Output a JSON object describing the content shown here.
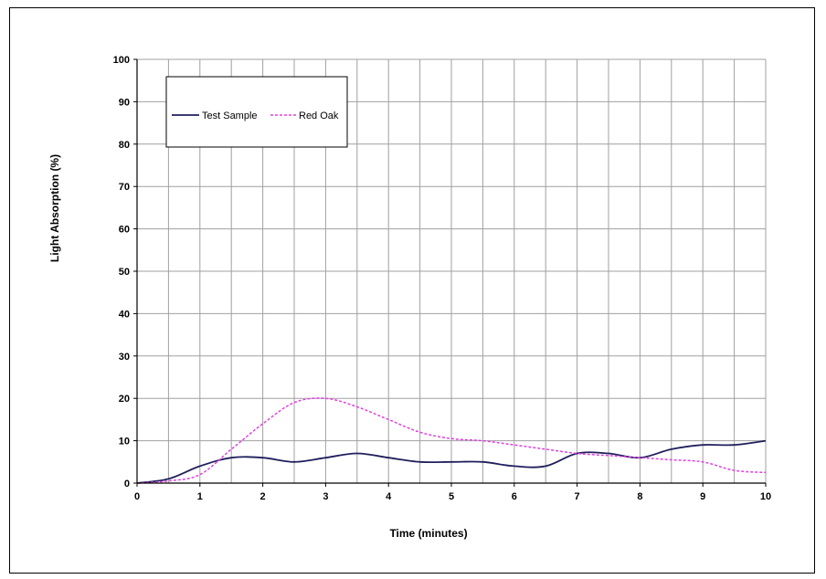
{
  "chart_data": {
    "type": "line",
    "xlabel": "Time (minutes)",
    "ylabel": "Light Absorption (%)",
    "xlim": [
      0,
      10
    ],
    "ylim": [
      0,
      100
    ],
    "x_ticks": [
      "0",
      "1",
      "2",
      "3",
      "4",
      "5",
      "6",
      "7",
      "8",
      "9",
      "10"
    ],
    "y_ticks": [
      "0",
      "10",
      "20",
      "30",
      "40",
      "50",
      "60",
      "70",
      "80",
      "90",
      "100"
    ],
    "grid": true,
    "legend": "top-left",
    "series": [
      {
        "name": "Test Sample",
        "color": "#1f1f5c",
        "style": "solid",
        "x": [
          0,
          0.5,
          1,
          1.5,
          2,
          2.5,
          3,
          3.5,
          4,
          4.5,
          5,
          5.5,
          6,
          6.5,
          7,
          7.5,
          8,
          8.5,
          9,
          9.5,
          10
        ],
        "y": [
          0,
          1,
          4,
          6,
          6,
          5,
          6,
          7,
          6,
          5,
          5,
          5,
          4,
          4,
          7,
          7,
          6,
          8,
          9,
          9,
          10
        ]
      },
      {
        "name": "Red Oak",
        "color": "#e040e0",
        "style": "dashed",
        "x": [
          0,
          0.5,
          1,
          1.5,
          2,
          2.5,
          3,
          3.5,
          4,
          4.5,
          5,
          5.5,
          6,
          6.5,
          7,
          7.5,
          8,
          8.5,
          9,
          9.5,
          10
        ],
        "y": [
          0,
          0.5,
          2,
          8,
          14,
          19,
          20,
          18,
          15,
          12,
          10.5,
          10,
          9,
          8,
          7,
          6.5,
          6,
          5.5,
          5,
          3,
          2.5
        ]
      }
    ]
  }
}
